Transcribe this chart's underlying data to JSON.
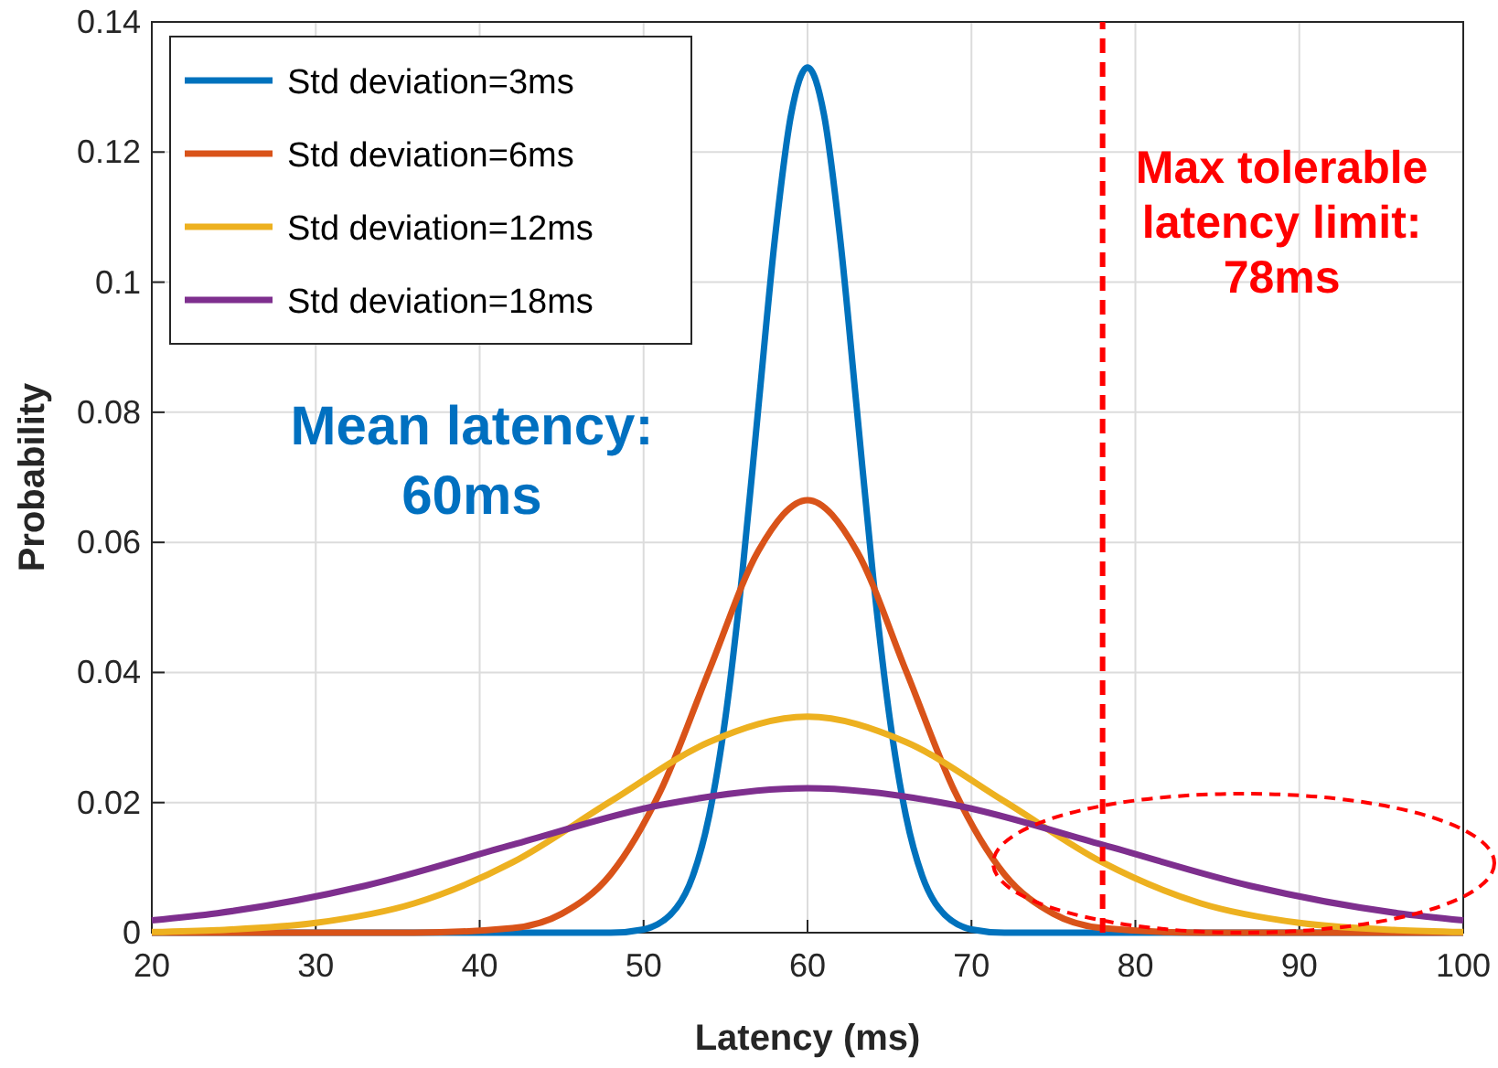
{
  "chart_data": {
    "type": "line",
    "xlabel": "Latency (ms)",
    "ylabel": "Probability",
    "xlim": [
      20,
      100
    ],
    "ylim": [
      0,
      0.14
    ],
    "xticks": [
      20,
      30,
      40,
      50,
      60,
      70,
      80,
      90,
      100
    ],
    "yticks": [
      0,
      0.02,
      0.04,
      0.06,
      0.08,
      0.1,
      0.12,
      0.14
    ],
    "grid": true,
    "legend": "top left",
    "marker": "none",
    "line_style": "solid",
    "series": [
      {
        "name": "Std deviation=3ms",
        "color": "#0072bd",
        "x": [
          20,
          48,
          50,
          52,
          53,
          54,
          55,
          56,
          57,
          58,
          59,
          60,
          61,
          62,
          63,
          64,
          65,
          66,
          67,
          68,
          70,
          72,
          100
        ],
        "values": [
          0,
          0,
          0.0005,
          0.0038,
          0.0087,
          0.018,
          0.0332,
          0.0547,
          0.0807,
          0.1065,
          0.1258,
          0.133,
          0.1258,
          0.1065,
          0.0807,
          0.0547,
          0.0332,
          0.018,
          0.0087,
          0.0038,
          0.0005,
          0,
          0
        ]
      },
      {
        "name": "Std deviation=6ms",
        "color": "#d95319",
        "x": [
          20,
          36,
          42,
          45,
          48,
          51,
          54,
          57,
          60,
          63,
          66,
          69,
          72,
          75,
          78,
          84,
          100
        ],
        "values": [
          0,
          0,
          0.0007,
          0.0029,
          0.009,
          0.0216,
          0.0403,
          0.0587,
          0.0665,
          0.0587,
          0.0403,
          0.0216,
          0.009,
          0.0029,
          0.0007,
          0,
          0
        ]
      },
      {
        "name": "Std deviation=12ms",
        "color": "#edb120",
        "x": [
          20,
          24,
          30,
          36,
          42,
          48,
          54,
          60,
          66,
          72,
          78,
          84,
          90,
          96,
          100
        ],
        "values": [
          0.0001,
          0.0004,
          0.0015,
          0.0045,
          0.0108,
          0.0202,
          0.0293,
          0.0332,
          0.0293,
          0.0202,
          0.0108,
          0.0045,
          0.0015,
          0.0004,
          0.0001
        ]
      },
      {
        "name": "Std deviation=18ms",
        "color": "#7e2f8e",
        "x": [
          20,
          24,
          33,
          42,
          51,
          60,
          69,
          78,
          87,
          96,
          100
        ],
        "values": [
          0.0019,
          0.003,
          0.0072,
          0.0135,
          0.0196,
          0.0222,
          0.0196,
          0.0135,
          0.0072,
          0.003,
          0.0019
        ]
      }
    ],
    "ref_lines": [
      {
        "axis": "x",
        "value": 78,
        "label": "Max tolerable\nlatency limit:\n78ms",
        "color": "#ff0000",
        "line_style": "dashed"
      }
    ],
    "annotations": [
      "Mean latency:\n60ms"
    ]
  }
}
